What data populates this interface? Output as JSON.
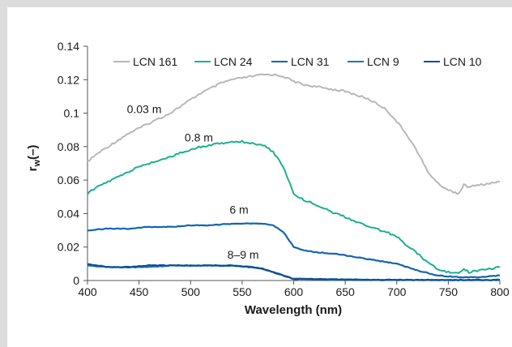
{
  "chart_data": {
    "type": "line",
    "xlabel": "Wavelength (nm)",
    "ylabel": {
      "main": "r",
      "sub": "w",
      "rest": "(–)"
    },
    "xlim": [
      400,
      800
    ],
    "ylim": [
      0,
      0.14
    ],
    "xticks": [
      "400",
      "450",
      "500",
      "550",
      "600",
      "650",
      "700",
      "750",
      "800"
    ],
    "yticks": [
      "0",
      "0.02",
      "0.04",
      "0.06",
      "0.08",
      "0.1",
      "0.12",
      "0.14"
    ],
    "grid": false,
    "legend_position": "top",
    "series": [
      {
        "name": "LCN 161",
        "color": "#b8b8b8",
        "x": [
          400,
          410,
          420,
          430,
          440,
          450,
          460,
          470,
          480,
          490,
          500,
          510,
          520,
          530,
          540,
          550,
          560,
          570,
          580,
          590,
          600,
          610,
          620,
          630,
          640,
          650,
          660,
          670,
          680,
          690,
          700,
          710,
          720,
          730,
          740,
          750,
          755,
          760,
          765,
          770,
          780,
          790,
          800
        ],
        "y": [
          0.071,
          0.076,
          0.08,
          0.084,
          0.088,
          0.091,
          0.094,
          0.097,
          0.1,
          0.104,
          0.108,
          0.112,
          0.115,
          0.118,
          0.12,
          0.121,
          0.122,
          0.123,
          0.123,
          0.122,
          0.119,
          0.117,
          0.116,
          0.115,
          0.114,
          0.113,
          0.111,
          0.109,
          0.106,
          0.102,
          0.095,
          0.087,
          0.077,
          0.065,
          0.058,
          0.054,
          0.053,
          0.052,
          0.057,
          0.056,
          0.057,
          0.058,
          0.059
        ]
      },
      {
        "name": "LCN 24",
        "color": "#1bb08f",
        "x": [
          400,
          410,
          420,
          430,
          440,
          450,
          460,
          470,
          480,
          490,
          500,
          510,
          520,
          530,
          540,
          550,
          560,
          570,
          580,
          590,
          595,
          600,
          610,
          620,
          630,
          640,
          650,
          660,
          670,
          680,
          690,
          700,
          710,
          720,
          730,
          740,
          750,
          760,
          765,
          770,
          780,
          790,
          800
        ],
        "y": [
          0.052,
          0.056,
          0.059,
          0.062,
          0.065,
          0.068,
          0.07,
          0.072,
          0.074,
          0.076,
          0.078,
          0.08,
          0.081,
          0.082,
          0.083,
          0.083,
          0.082,
          0.081,
          0.077,
          0.068,
          0.06,
          0.052,
          0.048,
          0.046,
          0.043,
          0.04,
          0.038,
          0.035,
          0.033,
          0.031,
          0.029,
          0.026,
          0.021,
          0.016,
          0.011,
          0.007,
          0.005,
          0.004,
          0.007,
          0.005,
          0.006,
          0.007,
          0.008
        ]
      },
      {
        "name": "LCN 31",
        "color": "#1565b0",
        "x": [
          400,
          420,
          440,
          460,
          480,
          500,
          520,
          540,
          550,
          560,
          570,
          580,
          590,
          600,
          610,
          620,
          640,
          660,
          680,
          700,
          720,
          740,
          760,
          780,
          800
        ],
        "y": [
          0.03,
          0.031,
          0.031,
          0.032,
          0.032,
          0.033,
          0.033,
          0.034,
          0.034,
          0.034,
          0.034,
          0.033,
          0.029,
          0.02,
          0.018,
          0.017,
          0.016,
          0.014,
          0.012,
          0.01,
          0.006,
          0.003,
          0.002,
          0.002,
          0.003
        ]
      },
      {
        "name": "LCN 9",
        "color": "#1e73be",
        "x": [
          400,
          420,
          440,
          460,
          480,
          500,
          520,
          540,
          560,
          570,
          580,
          590,
          600,
          620,
          650,
          700,
          750,
          800
        ],
        "y": [
          0.009,
          0.008,
          0.008,
          0.008,
          0.009,
          0.009,
          0.009,
          0.009,
          0.008,
          0.007,
          0.005,
          0.003,
          0.001,
          0.0008,
          0.0005,
          0.0004,
          0.0003,
          0.0004
        ]
      },
      {
        "name": "LCN 10",
        "color": "#0d4f94",
        "x": [
          400,
          410,
          420,
          440,
          460,
          480,
          500,
          520,
          540,
          560,
          570,
          580,
          590,
          600,
          620,
          650,
          700,
          750,
          800
        ],
        "y": [
          0.01,
          0.009,
          0.008,
          0.008,
          0.009,
          0.009,
          0.009,
          0.009,
          0.009,
          0.008,
          0.007,
          0.005,
          0.003,
          0.001,
          0.0008,
          0.0005,
          0.0004,
          0.0003,
          0.0004
        ]
      }
    ],
    "annotations": [
      {
        "text": "0.03 m",
        "x": 455,
        "y": 0.1
      },
      {
        "text": "0.8 m",
        "x": 508,
        "y": 0.083
      },
      {
        "text": "6 m",
        "x": 547,
        "y": 0.04
      },
      {
        "text": "8–9 m",
        "x": 551,
        "y": 0.013
      }
    ]
  }
}
